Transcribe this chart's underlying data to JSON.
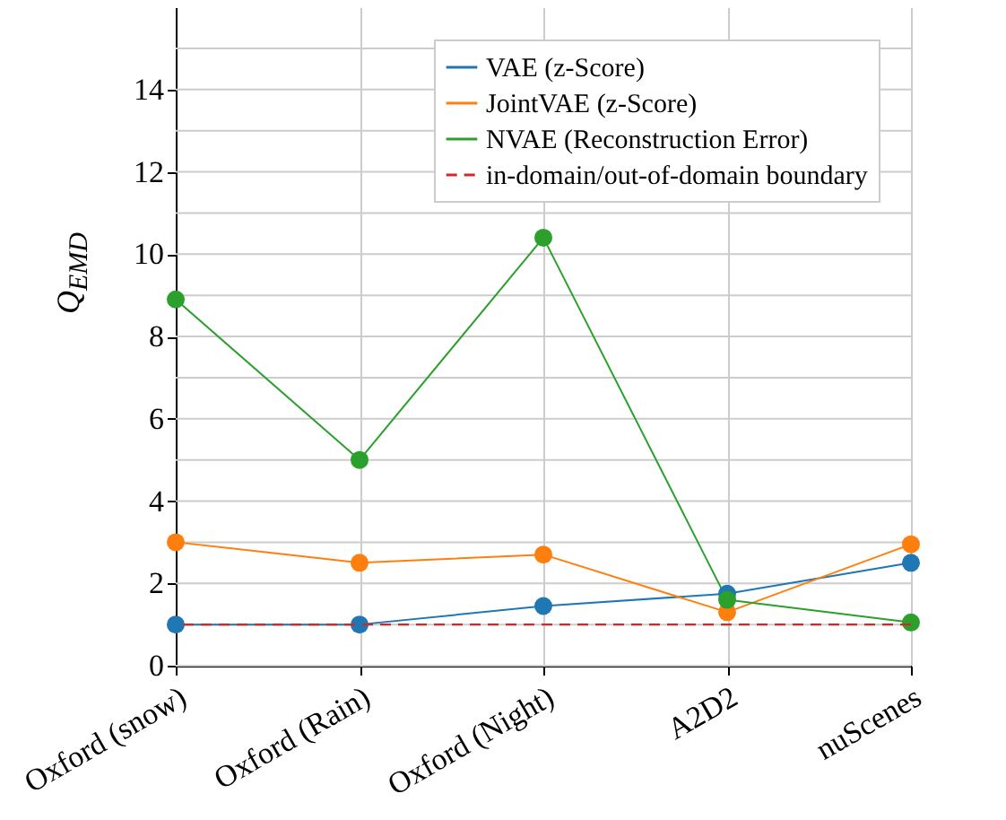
{
  "chart_data": {
    "type": "line",
    "ylabel": "Q$_{EMD}$",
    "categories": [
      "Oxford (snow)",
      "Oxford (Rain)",
      "Oxford (Night)",
      "A2D2",
      "nuScenes"
    ],
    "series": [
      {
        "name": "VAE (z-Score)",
        "color": "#1f77b4",
        "values": [
          1.0,
          1.0,
          1.45,
          1.75,
          2.5
        ]
      },
      {
        "name": "JointVAE (z-Score)",
        "color": "#ff7f0e",
        "values": [
          3.0,
          2.5,
          2.7,
          1.3,
          2.95
        ]
      },
      {
        "name": "NVAE (Reconstruction Error)",
        "color": "#2ca02c",
        "values": [
          8.9,
          5.0,
          10.4,
          1.6,
          1.05
        ]
      }
    ],
    "ref_lines": [
      {
        "axis": "y",
        "value": 1,
        "label": "in-domain/out-of-domain boundary",
        "color": "#d62728",
        "line_style": "dashed"
      }
    ],
    "ylim": [
      0,
      16
    ],
    "yticks": [
      0,
      {
        "value": 1,
        "label": null
      },
      2,
      {
        "value": 3,
        "label": null
      },
      4,
      {
        "value": 5,
        "label": null
      },
      6,
      {
        "value": 7,
        "label": null
      },
      8,
      {
        "value": 9,
        "label": null
      },
      10,
      {
        "value": 11,
        "label": null
      },
      12,
      {
        "value": 13,
        "label": null
      },
      14,
      {
        "value": 15,
        "label": null
      }
    ],
    "grid": true,
    "legend": "top right",
    "marker": "circle",
    "line_style": "solid"
  }
}
